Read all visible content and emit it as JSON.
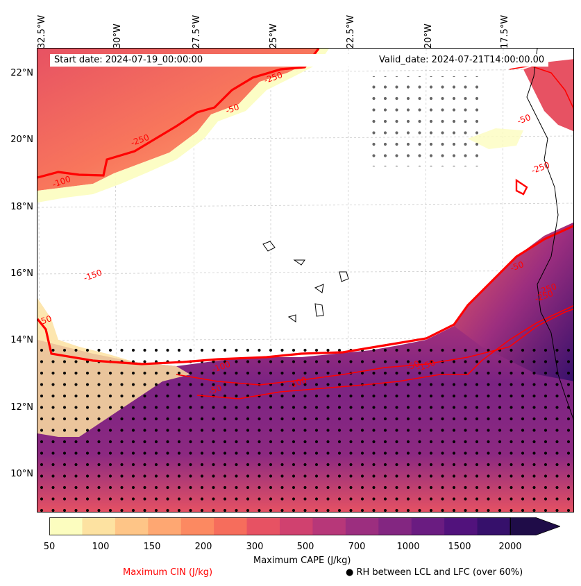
{
  "header": {
    "start_date": "Start date: 2024-07-19_00:00:00",
    "valid_date": "Valid_date: 2024-07-21T14:00:00.00"
  },
  "axes": {
    "lon_labels": [
      "32.5°W",
      "30°W",
      "27.5°W",
      "25°W",
      "22.5°W",
      "20°W",
      "17.5°W"
    ],
    "lat_labels": [
      "22°N",
      "20°N",
      "18°N",
      "16°N",
      "14°N",
      "12°N",
      "10°N"
    ]
  },
  "contour_labels": [
    "-250",
    "-50",
    "-250",
    "-100",
    "-150",
    "-50",
    "-250",
    "-250",
    "-50",
    "-250",
    "-100",
    "-50",
    "-100",
    "-50",
    "-150",
    "-50"
  ],
  "colorbar": {
    "label": "Maximum CAPE (J/kg)",
    "ticks": [
      "50",
      "100",
      "150",
      "200",
      "300",
      "500",
      "700",
      "1000",
      "1500",
      "2000"
    ],
    "colors": [
      "#fcfdbf",
      "#fde2a1",
      "#fec587",
      "#fea772",
      "#fc8961",
      "#f66d5c",
      "#e75263",
      "#d0416f",
      "#b73779",
      "#9c2e7f",
      "#832681",
      "#6a1c81",
      "#51127c",
      "#36106b",
      "#1f0c48"
    ]
  },
  "legend": {
    "cin_label": "Maximum CIN (J/kg)",
    "cin_color": "#ff0000",
    "rh_symbol": "●",
    "rh_label": "RH between LCL and LFC (over 60%)"
  }
}
